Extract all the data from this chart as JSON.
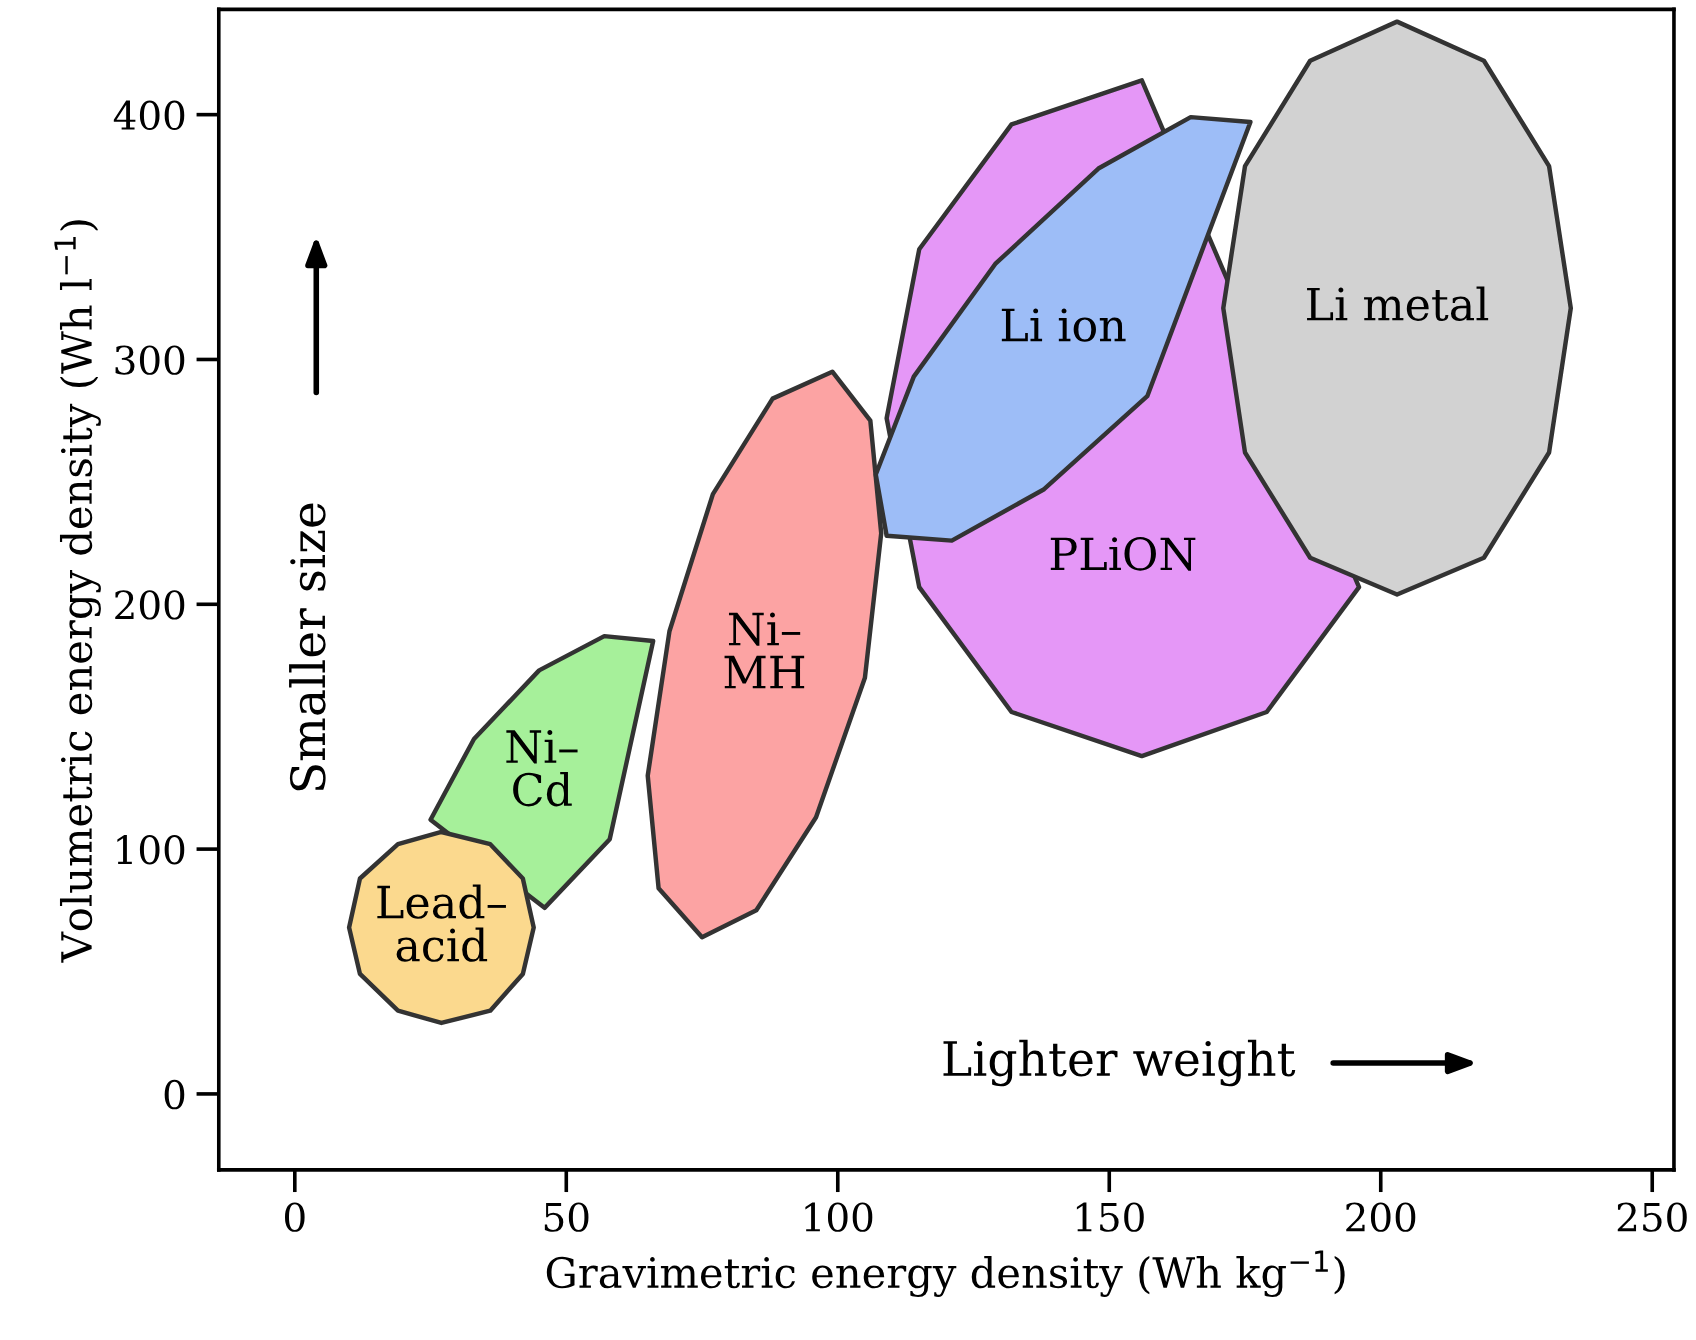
{
  "chart_data": {
    "type": "area",
    "xlabel": "Gravimetric energy density (Wh kg$^{−1}$)",
    "ylabel": "Volumetric energy density (Wh l$^{−1}$)",
    "xlim": [
      -14,
      254
    ],
    "ylim": [
      -31,
      443
    ],
    "xticks": [
      0,
      50,
      100,
      150,
      200,
      250
    ],
    "yticks": [
      0,
      100,
      200,
      300,
      400
    ],
    "grid": false,
    "legend": false,
    "marker": "none",
    "line_style": "solid",
    "series": [
      {
        "name": "Ni–\nCd",
        "color": "#a6f09a",
        "x": [
          66,
          null,
          null,
          58,
          46,
          null,
          null,
          null,
          25,
          33,
          45,
          57
        ],
        "values": [
          185,
          null,
          null,
          104,
          76,
          null,
          null,
          null,
          112,
          145,
          173,
          187
        ]
      },
      {
        "name": "Lead–\nacid",
        "color": "#fbd98e",
        "x": [
          44,
          42,
          36,
          27,
          19,
          12,
          10,
          12,
          19,
          27,
          36,
          42
        ],
        "values": [
          68,
          88,
          102,
          107,
          102,
          88,
          68,
          49,
          34,
          29,
          34,
          49
        ]
      },
      {
        "name": "Ni–\nMH",
        "color": "#fca3a3",
        "x": [
          99,
          106,
          108,
          105,
          96,
          85,
          75,
          67,
          65,
          69,
          77,
          88
        ],
        "values": [
          295,
          275,
          229,
          170,
          113,
          75,
          64,
          84,
          130,
          189,
          245,
          284
        ]
      },
      {
        "name": "PLiON",
        "color": "#e597f7",
        "x": [
          null,
          null,
          null,
          156,
          132,
          115,
          109,
          115,
          132,
          156,
          179,
          196
        ],
        "values": [
          null,
          null,
          null,
          414,
          396,
          345,
          276,
          207,
          156,
          138,
          156,
          207
        ]
      },
      {
        "name": "Li ion",
        "color": "#9dbdf7",
        "x": [
          176,
          null,
          null,
          157,
          138,
          121,
          109,
          107,
          114,
          129,
          148,
          165
        ],
        "values": [
          397,
          null,
          null,
          285,
          247,
          226,
          228,
          253,
          293,
          339,
          378,
          399
        ]
      },
      {
        "name": "Li metal",
        "color": "#d2d2d2",
        "x": [
          235,
          231,
          219,
          203,
          187,
          175,
          171,
          175,
          187,
          203,
          219,
          231
        ],
        "values": [
          321,
          379,
          422,
          438,
          422,
          379,
          321,
          262,
          219,
          204,
          219,
          262
        ]
      }
    ],
    "annotations": [
      "Smaller size",
      "Lighter weight"
    ]
  }
}
